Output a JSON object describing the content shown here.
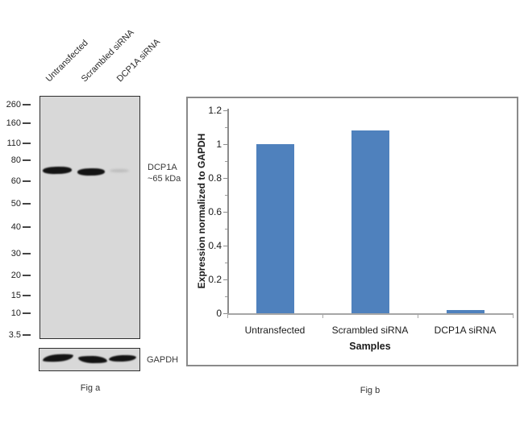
{
  "blot": {
    "lane_labels": [
      "Untransfected",
      "Scrambled siRNA",
      "DCP1A siRNA"
    ],
    "marker_labels": [
      "260",
      "160",
      "110",
      "80",
      "60",
      "50",
      "40",
      "30",
      "20",
      "15",
      "10",
      "3.5"
    ],
    "band_annotation_line1": "DCP1A",
    "band_annotation_line2": "~65 kDa",
    "loading_control_label": "GAPDH",
    "caption": "Fig a",
    "membrane_color": "#d8d8d8",
    "band_color": "#141414"
  },
  "chart_data": {
    "type": "bar",
    "categories": [
      "Untransfected",
      "Scrambled siRNA",
      "DCP1A siRNA"
    ],
    "values": [
      1.0,
      1.08,
      0.02
    ],
    "title": "",
    "xlabel": "Samples",
    "ylabel": "Expression normalized to GAPDH",
    "ylim": [
      0,
      1.2
    ],
    "yticks": [
      0,
      0.2,
      0.4,
      0.6,
      0.8,
      1,
      1.2
    ],
    "minor_tick_step": 0.1,
    "bar_color": "#4F81BD",
    "grid": false,
    "legend": false,
    "caption": "Fig b"
  }
}
